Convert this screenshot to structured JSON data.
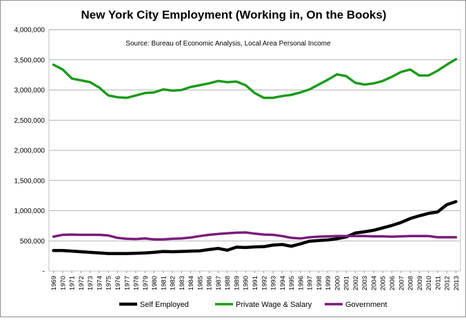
{
  "chart_data": {
    "type": "line",
    "title": "New York City Employment (Working in, On the Books)",
    "source_note": "Source:  Bureau of Economic Analysis, Local Area Personal Income",
    "xlabel": "",
    "ylabel": "",
    "ylim": [
      0,
      4000000
    ],
    "yticks": [
      0,
      500000,
      1000000,
      1500000,
      2000000,
      2500000,
      3000000,
      3500000,
      4000000
    ],
    "ytick_labels": [
      "-",
      "500,000",
      "1,000,000",
      "1,500,000",
      "2,000,000",
      "2,500,000",
      "3,000,000",
      "3,500,000",
      "4,000,000"
    ],
    "grid": "horizontal",
    "legend_position": "bottom",
    "x": [
      1969,
      1970,
      1971,
      1972,
      1973,
      1974,
      1975,
      1976,
      1977,
      1978,
      1979,
      1980,
      1981,
      1982,
      1983,
      1984,
      1985,
      1986,
      1987,
      1988,
      1989,
      1990,
      1991,
      1992,
      1993,
      1994,
      1995,
      1996,
      1997,
      1998,
      1999,
      2000,
      2001,
      2002,
      2003,
      2004,
      2005,
      2006,
      2007,
      2008,
      2009,
      2010,
      2011,
      2012,
      2013
    ],
    "series": [
      {
        "name": "Self Employed",
        "color": "#000000",
        "values": [
          340000,
          340000,
          330000,
          320000,
          310000,
          300000,
          290000,
          290000,
          290000,
          295000,
          300000,
          310000,
          325000,
          320000,
          325000,
          330000,
          335000,
          355000,
          375000,
          345000,
          395000,
          390000,
          400000,
          405000,
          430000,
          440000,
          410000,
          450000,
          495000,
          505000,
          515000,
          535000,
          565000,
          630000,
          650000,
          675000,
          715000,
          755000,
          805000,
          870000,
          915000,
          955000,
          980000,
          1100000,
          1150000
        ]
      },
      {
        "name": "Private Wage & Salary",
        "color": "#1a9a1a",
        "values": [
          3420000,
          3340000,
          3190000,
          3160000,
          3130000,
          3040000,
          2910000,
          2880000,
          2870000,
          2910000,
          2950000,
          2960000,
          3010000,
          2990000,
          3000000,
          3050000,
          3080000,
          3110000,
          3150000,
          3130000,
          3140000,
          3080000,
          2950000,
          2870000,
          2870000,
          2900000,
          2920000,
          2960000,
          3010000,
          3090000,
          3170000,
          3260000,
          3230000,
          3120000,
          3090000,
          3110000,
          3150000,
          3220000,
          3300000,
          3340000,
          3240000,
          3240000,
          3320000,
          3420000,
          3510000
        ]
      },
      {
        "name": "Government",
        "color": "#7a1a7a",
        "values": [
          570000,
          600000,
          605000,
          600000,
          600000,
          600000,
          590000,
          550000,
          535000,
          530000,
          540000,
          525000,
          525000,
          535000,
          540000,
          555000,
          580000,
          600000,
          615000,
          625000,
          635000,
          640000,
          620000,
          605000,
          600000,
          580000,
          550000,
          540000,
          560000,
          570000,
          575000,
          580000,
          580000,
          580000,
          580000,
          575000,
          575000,
          570000,
          575000,
          580000,
          580000,
          580000,
          560000,
          560000,
          560000
        ]
      }
    ]
  }
}
